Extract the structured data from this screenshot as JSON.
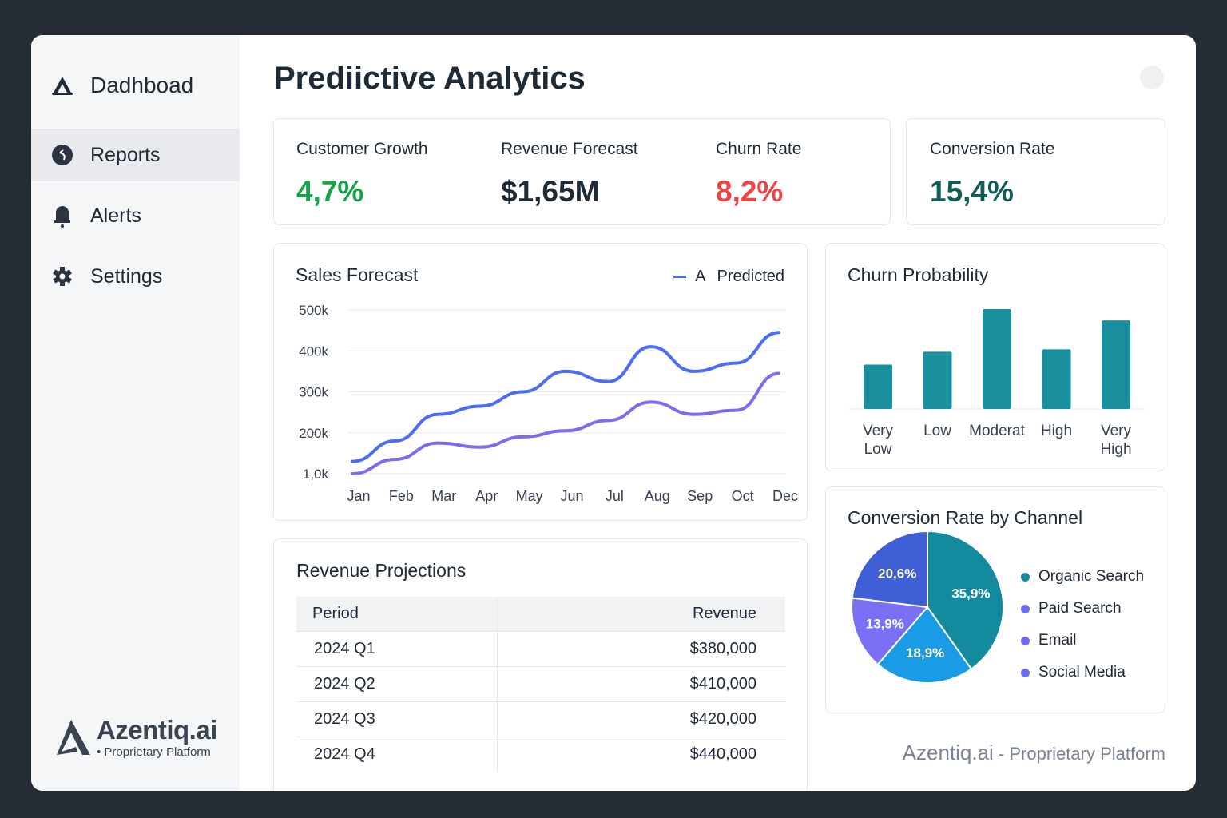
{
  "sidebar": {
    "items": [
      {
        "label": "Dadhboad",
        "icon": "logo-a-icon"
      },
      {
        "label": "Reports",
        "icon": "reports-icon",
        "active": true
      },
      {
        "label": "Alerts",
        "icon": "bell-icon"
      },
      {
        "label": "Settings",
        "icon": "gear-icon"
      }
    ],
    "brand": {
      "name": "Azentiq.ai",
      "sub": "• Proprietary Platform"
    }
  },
  "header": {
    "title": "Prediictive Analytics"
  },
  "kpis": [
    {
      "label": "Customer Growth",
      "value": "4,7%",
      "color": "#16a34a"
    },
    {
      "label": "Revenue Forecast",
      "value": "$1,65M",
      "color": "#1f2a37"
    },
    {
      "label": "Churn Rate",
      "value": "8,2%",
      "color": "#ef4444"
    },
    {
      "label": "Conversion Rate",
      "value": "15,4%",
      "color": "#115e59"
    }
  ],
  "chart_data": [
    {
      "type": "line",
      "title": "Sales Forecast",
      "legend": [
        "A",
        "Predicted"
      ],
      "legend_position": "top-right",
      "grid": true,
      "categories": [
        "Jan",
        "Feb",
        "Mar",
        "Apr",
        "May",
        "Jun",
        "Jul",
        "Aug",
        "Sep",
        "Oct",
        "Dec"
      ],
      "yticks": [
        "1,0k",
        "200k",
        "300k",
        "400k",
        "500k"
      ],
      "ylim": [
        100000,
        500000
      ],
      "series": [
        {
          "name": "A",
          "color": "#4a6cf7",
          "values": [
            130000,
            180000,
            245000,
            265000,
            300000,
            350000,
            325000,
            410000,
            350000,
            370000,
            445000
          ]
        },
        {
          "name": "Predicted",
          "color": "#7c6cf0",
          "values": [
            100000,
            135000,
            175000,
            165000,
            190000,
            205000,
            230000,
            275000,
            245000,
            255000,
            345000
          ]
        }
      ]
    },
    {
      "type": "bar",
      "title": "Churn Probability",
      "color": "#1a8f9e",
      "categories": [
        "Very Low",
        "Low",
        "Moderat",
        "High",
        "Very High"
      ],
      "values": [
        55,
        71,
        124,
        74,
        110
      ]
    },
    {
      "type": "pie",
      "title": "Conversion Rate by Channel",
      "slices": [
        {
          "label": "35,9%",
          "value": 35.9,
          "color": "#148a9f"
        },
        {
          "label": "18,9%",
          "value": 18.9,
          "color": "#1a9be6"
        },
        {
          "label": "13,9%",
          "value": 13.9,
          "color": "#7b6ff5"
        },
        {
          "label": "20,6%",
          "value": 20.6,
          "color": "#3f5fd6"
        }
      ],
      "legend": [
        {
          "label": "Organic Search",
          "color": "#148a9f"
        },
        {
          "label": "Paid Search",
          "color": "#6b6cf6"
        },
        {
          "label": "Email",
          "color": "#6b6cf6"
        },
        {
          "label": "Social Media",
          "color": "#6b6cf6"
        }
      ]
    }
  ],
  "revenue": {
    "title": "Revenue Projections",
    "headers": [
      "Period",
      "Revenue"
    ],
    "rows": [
      [
        "2024 Q1",
        "$380,000"
      ],
      [
        "2024 Q2",
        "$410,000"
      ],
      [
        "2024 Q3",
        "$420,000"
      ],
      [
        "2024 Q4",
        "$440,000"
      ]
    ]
  },
  "footer": {
    "brand": "Azentiq.ai",
    "sub": " - Proprietary Platform"
  }
}
